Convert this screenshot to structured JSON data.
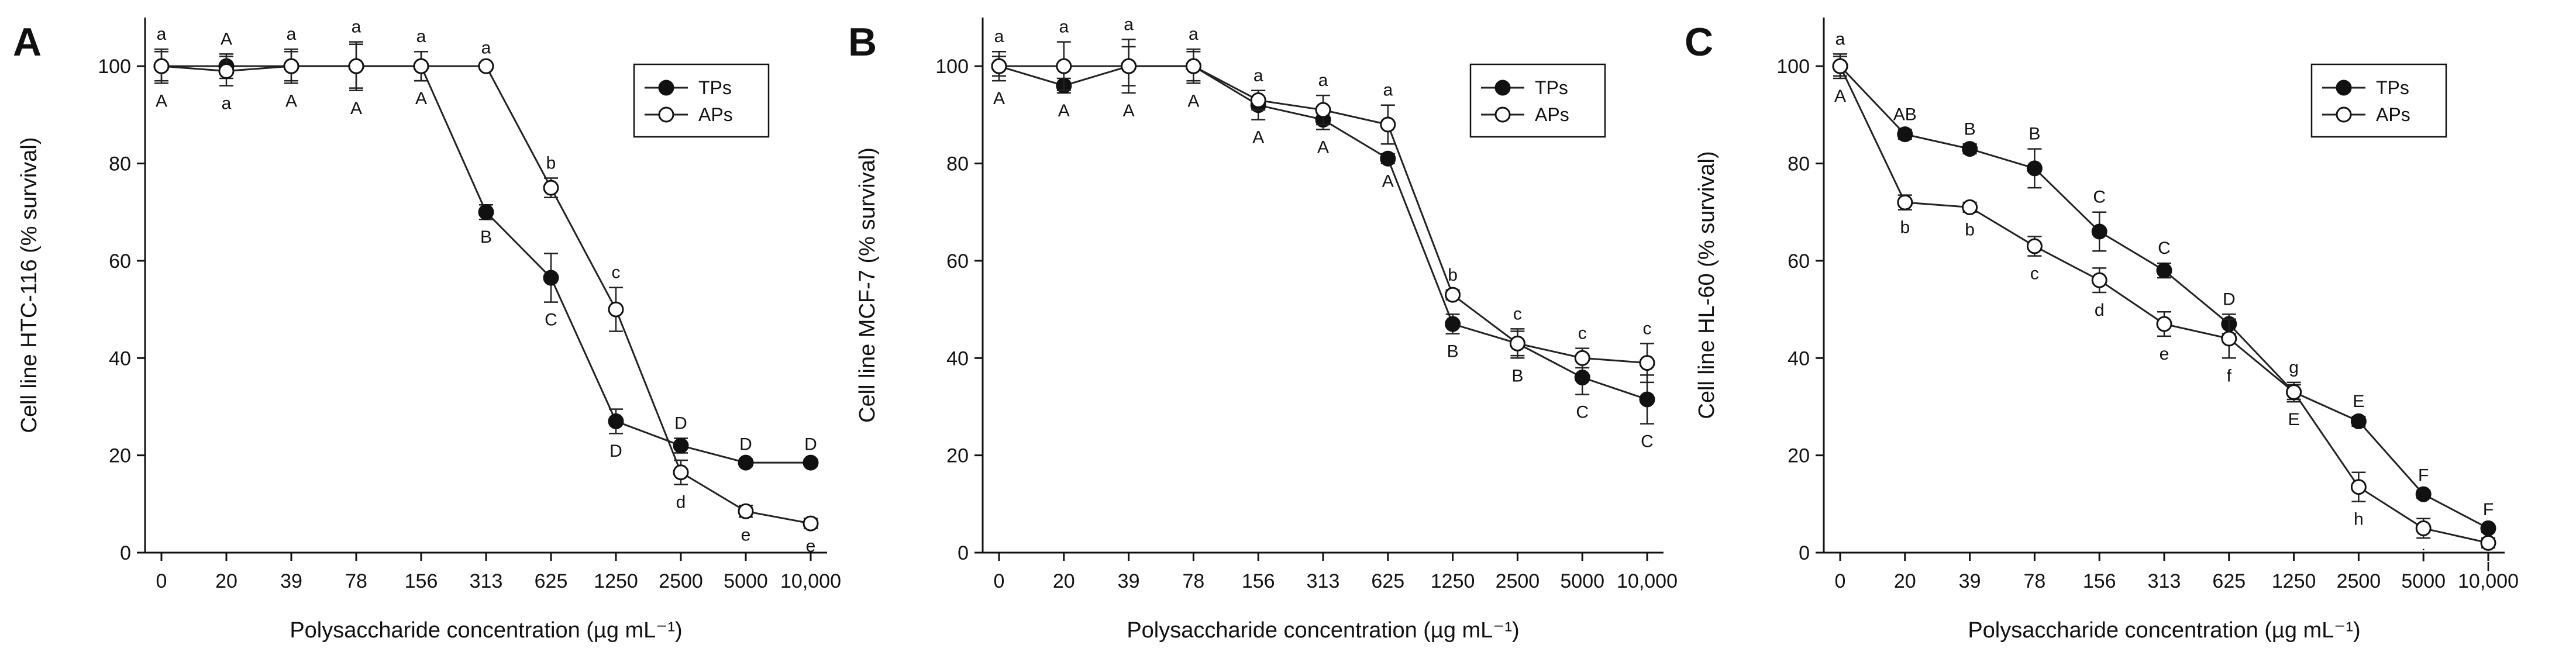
{
  "chart_data": [
    {
      "type": "line",
      "panel": "A",
      "xlabel": "Polysaccharide concentration (µg mL⁻¹)",
      "ylabel": "Cell line HTC-116 (% survival)",
      "ylim": [
        0,
        110
      ],
      "yticks": [
        0,
        20,
        40,
        60,
        80,
        100
      ],
      "categories": [
        "0",
        "20",
        "39",
        "78",
        "156",
        "313",
        "625",
        "1250",
        "2500",
        "5000",
        "10,000"
      ],
      "legend": {
        "position": "top-right",
        "entries": [
          "TPs",
          "APs"
        ]
      },
      "series": [
        {
          "name": "TPs",
          "marker": "filled-circle",
          "values": [
            100,
            100,
            100,
            100,
            100,
            70,
            56.5,
            27,
            22,
            18.5,
            18.5
          ],
          "errors": [
            3,
            2.5,
            3,
            5,
            3,
            1.5,
            5,
            2.5,
            1.5,
            0.7,
            0.7
          ],
          "labels": [
            "A",
            "A",
            "A",
            "A",
            "A",
            "B",
            "C",
            "D",
            "D",
            "D",
            "D"
          ]
        },
        {
          "name": "APs",
          "marker": "open-circle",
          "values": [
            100,
            99,
            100,
            100,
            100,
            100,
            75,
            50,
            16.5,
            8.5,
            6
          ],
          "errors": [
            3.5,
            3,
            3.5,
            4.5,
            3,
            0.7,
            2,
            4.5,
            2.5,
            1.2,
            1
          ],
          "labels": [
            "a",
            "a",
            "a",
            "a",
            "a",
            "a",
            "b",
            "c",
            "d",
            "e",
            "e"
          ]
        }
      ]
    },
    {
      "type": "line",
      "panel": "B",
      "xlabel": "Polysaccharide concentration (µg mL⁻¹)",
      "ylabel": "Cell line MCF-7 (% survival)",
      "ylim": [
        0,
        110
      ],
      "yticks": [
        0,
        20,
        40,
        60,
        80,
        100
      ],
      "categories": [
        "0",
        "20",
        "39",
        "78",
        "156",
        "313",
        "625",
        "1250",
        "2500",
        "5000",
        "10,000"
      ],
      "legend": {
        "position": "top-right",
        "entries": [
          "TPs",
          "APs"
        ]
      },
      "series": [
        {
          "name": "TPs",
          "marker": "filled-circle",
          "values": [
            100,
            96,
            100,
            100,
            92,
            89,
            81,
            47,
            43,
            36,
            31.5
          ],
          "errors": [
            2,
            1.5,
            4,
            3,
            3,
            2,
            1,
            2,
            3,
            3.5,
            5
          ],
          "labels": [
            "A",
            "A",
            "A",
            "A",
            "A",
            "A",
            "A",
            "B",
            "B",
            "C",
            "C"
          ]
        },
        {
          "name": "APs",
          "marker": "open-circle",
          "values": [
            100,
            100,
            100,
            100,
            93,
            91,
            88,
            53,
            43,
            40,
            39
          ],
          "errors": [
            3,
            5,
            5.5,
            3.5,
            2,
            3,
            4,
            1,
            2.5,
            2,
            4
          ],
          "labels": [
            "a",
            "a",
            "a",
            "a",
            "a",
            "a",
            "a",
            "b",
            "c",
            "c",
            "c"
          ]
        }
      ]
    },
    {
      "type": "line",
      "panel": "C",
      "xlabel": "Polysaccharide concentration (µg mL⁻¹)",
      "ylabel": "Cell line HL-60 (% survival)",
      "ylim": [
        0,
        110
      ],
      "yticks": [
        0,
        20,
        40,
        60,
        80,
        100
      ],
      "categories": [
        "0",
        "20",
        "39",
        "78",
        "156",
        "313",
        "625",
        "1250",
        "2500",
        "5000",
        "10,000"
      ],
      "legend": {
        "position": "top-right",
        "entries": [
          "TPs",
          "APs"
        ]
      },
      "series": [
        {
          "name": "TPs",
          "marker": "filled-circle",
          "values": [
            100,
            86,
            83,
            79,
            66,
            58,
            47,
            33,
            27,
            12,
            5
          ],
          "errors": [
            2.5,
            1,
            1,
            4,
            4,
            1.5,
            2,
            1.5,
            1,
            0.8,
            0.8
          ],
          "labels": [
            "A",
            "AB",
            "B",
            "B",
            "C",
            "C",
            "D",
            "E",
            "E",
            "F",
            "F"
          ]
        },
        {
          "name": "APs",
          "marker": "open-circle",
          "values": [
            100,
            72,
            71,
            63,
            56,
            47,
            44,
            33,
            13.5,
            5,
            2
          ],
          "errors": [
            2,
            1.5,
            1,
            2,
            2.5,
            2.5,
            4,
            2,
            3,
            2,
            1
          ],
          "labels": [
            "a",
            "b",
            "b",
            "c",
            "d",
            "e",
            "f",
            "g",
            "h",
            "i",
            "i"
          ]
        }
      ]
    }
  ]
}
